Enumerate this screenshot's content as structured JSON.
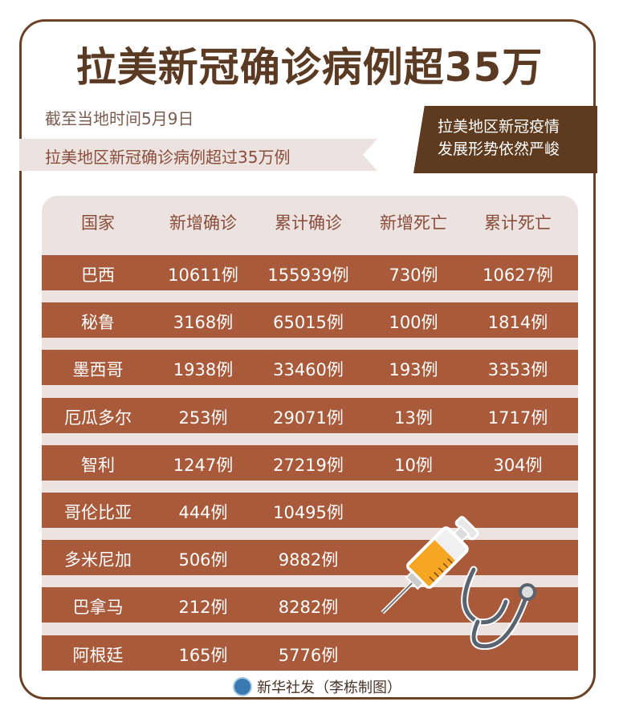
{
  "title": "拉美新冠确诊病例超35万",
  "subtitle": "截至当地时间5月9日",
  "banner": "拉美地区新冠确诊病例超过35万例",
  "ribbon": [
    "拉美地区新冠疫情",
    "发展形势依然严峻"
  ],
  "footer": "新华社发（李栋制图）",
  "colors": {
    "title": "#5a3a22",
    "row": "#a85a3a",
    "panel": "#ece2df",
    "ribbon": "#5e3a1e"
  },
  "icons": [
    "syringe-icon",
    "stethoscope-icon",
    "xinhua-logo-icon"
  ],
  "chart_data": {
    "type": "table",
    "columns": [
      "国家",
      "新增确诊",
      "累计确诊",
      "新增死亡",
      "累计死亡"
    ],
    "rows": [
      [
        "巴西",
        "10611例",
        "155939例",
        "730例",
        "10627例"
      ],
      [
        "秘鲁",
        "3168例",
        "65015例",
        "100例",
        "1814例"
      ],
      [
        "墨西哥",
        "1938例",
        "33460例",
        "193例",
        "3353例"
      ],
      [
        "厄瓜多尔",
        "253例",
        "29071例",
        "13例",
        "1717例"
      ],
      [
        "智利",
        "1247例",
        "27219例",
        "10例",
        "304例"
      ],
      [
        "哥伦比亚",
        "444例",
        "10495例",
        "",
        ""
      ],
      [
        "多米尼加",
        "506例",
        "9882例",
        "",
        ""
      ],
      [
        "巴拿马",
        "212例",
        "8282例",
        "",
        ""
      ],
      [
        "阿根廷",
        "165例",
        "5776例",
        "",
        ""
      ]
    ]
  }
}
